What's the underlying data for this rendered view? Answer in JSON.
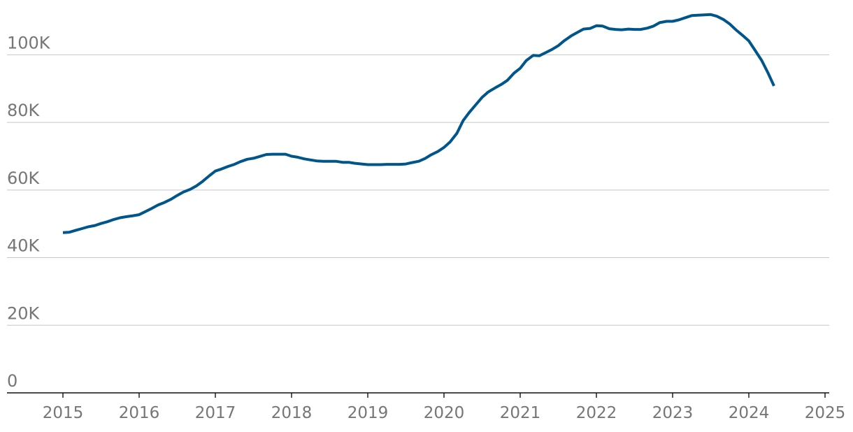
{
  "chart_data": {
    "type": "line",
    "title": "",
    "xlabel": "",
    "ylabel": "",
    "xlim": [
      2015,
      2025
    ],
    "ylim": [
      0,
      110000
    ],
    "grid": true,
    "colors": {
      "line": "#00568a",
      "grid": "#c8c8c8",
      "axis": "#111111",
      "tick_text": "#767676"
    },
    "y_ticks": [
      {
        "value": 0,
        "label": "0"
      },
      {
        "value": 20000,
        "label": "20K"
      },
      {
        "value": 40000,
        "label": "40K"
      },
      {
        "value": 60000,
        "label": "60K"
      },
      {
        "value": 80000,
        "label": "80K"
      },
      {
        "value": 100000,
        "label": "100K"
      }
    ],
    "x_ticks": [
      {
        "value": 2015,
        "label": "2015"
      },
      {
        "value": 2016,
        "label": "2016"
      },
      {
        "value": 2017,
        "label": "2017"
      },
      {
        "value": 2018,
        "label": "2018"
      },
      {
        "value": 2019,
        "label": "2019"
      },
      {
        "value": 2020,
        "label": "2020"
      },
      {
        "value": 2021,
        "label": "2021"
      },
      {
        "value": 2022,
        "label": "2022"
      },
      {
        "value": 2023,
        "label": "2023"
      },
      {
        "value": 2024,
        "label": "2024"
      },
      {
        "value": 2025,
        "label": "2025"
      }
    ],
    "series": [
      {
        "points": [
          [
            2015.0,
            47400
          ],
          [
            2015.08,
            47500
          ],
          [
            2015.17,
            48100
          ],
          [
            2015.25,
            48600
          ],
          [
            2015.33,
            49100
          ],
          [
            2015.42,
            49500
          ],
          [
            2015.5,
            50100
          ],
          [
            2015.58,
            50600
          ],
          [
            2015.67,
            51300
          ],
          [
            2015.75,
            51800
          ],
          [
            2015.83,
            52100
          ],
          [
            2015.92,
            52400
          ],
          [
            2016.0,
            52700
          ],
          [
            2016.08,
            53600
          ],
          [
            2016.17,
            54600
          ],
          [
            2016.25,
            55600
          ],
          [
            2016.33,
            56300
          ],
          [
            2016.42,
            57300
          ],
          [
            2016.5,
            58400
          ],
          [
            2016.58,
            59400
          ],
          [
            2016.67,
            60200
          ],
          [
            2016.75,
            61200
          ],
          [
            2016.83,
            62500
          ],
          [
            2016.92,
            64200
          ],
          [
            2017.0,
            65600
          ],
          [
            2017.08,
            66200
          ],
          [
            2017.17,
            67000
          ],
          [
            2017.25,
            67600
          ],
          [
            2017.33,
            68400
          ],
          [
            2017.42,
            69100
          ],
          [
            2017.5,
            69400
          ],
          [
            2017.58,
            69900
          ],
          [
            2017.67,
            70500
          ],
          [
            2017.75,
            70600
          ],
          [
            2017.83,
            70600
          ],
          [
            2017.92,
            70600
          ],
          [
            2018.0,
            70000
          ],
          [
            2018.08,
            69700
          ],
          [
            2018.17,
            69200
          ],
          [
            2018.25,
            68900
          ],
          [
            2018.33,
            68600
          ],
          [
            2018.42,
            68500
          ],
          [
            2018.5,
            68500
          ],
          [
            2018.58,
            68500
          ],
          [
            2018.67,
            68200
          ],
          [
            2018.75,
            68200
          ],
          [
            2018.83,
            67900
          ],
          [
            2018.92,
            67700
          ],
          [
            2019.0,
            67500
          ],
          [
            2019.08,
            67500
          ],
          [
            2019.17,
            67500
          ],
          [
            2019.25,
            67600
          ],
          [
            2019.33,
            67600
          ],
          [
            2019.42,
            67600
          ],
          [
            2019.5,
            67700
          ],
          [
            2019.58,
            68100
          ],
          [
            2019.67,
            68500
          ],
          [
            2019.75,
            69300
          ],
          [
            2019.83,
            70400
          ],
          [
            2019.92,
            71400
          ],
          [
            2020.0,
            72600
          ],
          [
            2020.08,
            74200
          ],
          [
            2020.17,
            76800
          ],
          [
            2020.25,
            80500
          ],
          [
            2020.33,
            82900
          ],
          [
            2020.42,
            85300
          ],
          [
            2020.5,
            87400
          ],
          [
            2020.58,
            89000
          ],
          [
            2020.67,
            90200
          ],
          [
            2020.75,
            91200
          ],
          [
            2020.83,
            92400
          ],
          [
            2020.92,
            94600
          ],
          [
            2021.0,
            96000
          ],
          [
            2021.08,
            98300
          ],
          [
            2021.17,
            99800
          ],
          [
            2021.25,
            99700
          ],
          [
            2021.33,
            100600
          ],
          [
            2021.42,
            101600
          ],
          [
            2021.5,
            102700
          ],
          [
            2021.58,
            104200
          ],
          [
            2021.67,
            105600
          ],
          [
            2021.75,
            106600
          ],
          [
            2021.83,
            107600
          ],
          [
            2021.92,
            107800
          ],
          [
            2022.0,
            108600
          ],
          [
            2022.08,
            108500
          ],
          [
            2022.17,
            107700
          ],
          [
            2022.25,
            107500
          ],
          [
            2022.33,
            107400
          ],
          [
            2022.42,
            107600
          ],
          [
            2022.5,
            107500
          ],
          [
            2022.58,
            107500
          ],
          [
            2022.67,
            107900
          ],
          [
            2022.75,
            108500
          ],
          [
            2022.83,
            109500
          ],
          [
            2022.92,
            109900
          ],
          [
            2023.0,
            109900
          ],
          [
            2023.08,
            110300
          ],
          [
            2023.17,
            111000
          ],
          [
            2023.25,
            111600
          ],
          [
            2023.33,
            111700
          ],
          [
            2023.42,
            111800
          ],
          [
            2023.5,
            111900
          ],
          [
            2023.58,
            111400
          ],
          [
            2023.67,
            110400
          ],
          [
            2023.75,
            109100
          ],
          [
            2023.83,
            107400
          ],
          [
            2023.92,
            105700
          ],
          [
            2024.0,
            104100
          ],
          [
            2024.08,
            101400
          ],
          [
            2024.17,
            98300
          ],
          [
            2024.25,
            94700
          ],
          [
            2024.33,
            90800
          ]
        ]
      }
    ]
  }
}
